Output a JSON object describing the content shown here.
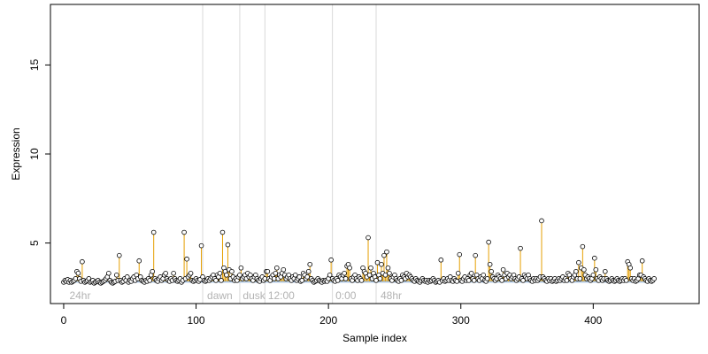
{
  "chart_data": {
    "type": "scatter",
    "xlabel": "Sample index",
    "ylabel": "Expression",
    "xlim": [
      -10,
      480
    ],
    "ylim": [
      1.6,
      18.4
    ],
    "xticks": [
      0,
      100,
      200,
      300,
      400
    ],
    "yticks": [
      5,
      10,
      15
    ],
    "baseline": 2.85,
    "colors": {
      "segment": "#e69f00",
      "baseline": "#a9c4e4",
      "point_edge": "#000000",
      "point_fill": "#ffffff",
      "divider": "#d9d9d9",
      "group_label": "#b3b3b3"
    },
    "dividers": [
      105,
      133,
      152,
      203,
      236
    ],
    "group_labels": [
      {
        "x": 3,
        "text": "24hr"
      },
      {
        "x": 107,
        "text": "dawn"
      },
      {
        "x": 134,
        "text": "dusk"
      },
      {
        "x": 153,
        "text": "12:00"
      },
      {
        "x": 204,
        "text": "0:00"
      },
      {
        "x": 238,
        "text": "48hr"
      }
    ],
    "series": [
      {
        "values": [
          2.8,
          2.9,
          2.85,
          2.95,
          2.8,
          2.9,
          2.8,
          2.85,
          2.9,
          3.0,
          3.4,
          3.3,
          3.0,
          2.85,
          3.95,
          2.9,
          2.8,
          2.85,
          2.9,
          3.0,
          2.8,
          2.85,
          2.9,
          2.75,
          2.8,
          2.85,
          2.9,
          2.8,
          2.75,
          2.8,
          2.85,
          2.9,
          3.0,
          3.1,
          3.3,
          2.9,
          2.8,
          2.75,
          2.8,
          2.85,
          3.2,
          2.9,
          4.3,
          2.9,
          2.8,
          2.85,
          3.0,
          2.9,
          3.1,
          2.8,
          2.9,
          2.85,
          3.0,
          3.1,
          2.9,
          3.2,
          3.0,
          4.0,
          3.1,
          2.9,
          2.85,
          2.8,
          2.9,
          2.85,
          3.0,
          2.9,
          3.2,
          3.4,
          5.6,
          3.0,
          2.9,
          2.85,
          3.0,
          3.1,
          2.9,
          3.0,
          3.2,
          3.3,
          3.0,
          2.9,
          2.85,
          3.0,
          2.9,
          3.3,
          3.0,
          2.9,
          2.85,
          2.9,
          3.0,
          2.8,
          2.9,
          5.6,
          3.0,
          4.1,
          3.1,
          3.2,
          3.3,
          2.9,
          2.85,
          2.9,
          3.0,
          2.9,
          2.85,
          2.95,
          4.85,
          3.1,
          2.9,
          2.85,
          2.9,
          3.0,
          2.9,
          3.0,
          3.1,
          3.2,
          3.0,
          2.9,
          3.2,
          3.1,
          3.3,
          2.9,
          5.6,
          3.6,
          3.4,
          3.2,
          4.9,
          3.5,
          3.0,
          3.4,
          3.1,
          2.9,
          3.0,
          2.9,
          3.1,
          3.2,
          3.6,
          3.0,
          3.1,
          3.2,
          3.0,
          3.3,
          3.1,
          3.2,
          3.0,
          2.9,
          3.1,
          3.2,
          3.0,
          2.9,
          2.85,
          3.0,
          3.1,
          2.9,
          3.0,
          3.4,
          3.4,
          3.0,
          2.9,
          3.1,
          3.2,
          3.0,
          3.3,
          3.6,
          3.0,
          3.2,
          3.1,
          3.3,
          3.5,
          3.2,
          3.0,
          3.1,
          3.2,
          3.0,
          2.9,
          3.1,
          3.0,
          3.2,
          2.9,
          3.0,
          3.1,
          2.85,
          2.9,
          3.3,
          3.2,
          3.0,
          3.1,
          3.4,
          3.8,
          3.0,
          2.9,
          2.8,
          2.85,
          2.9,
          3.0,
          2.9,
          2.85,
          2.8,
          2.9,
          2.85,
          2.9,
          2.85,
          3.0,
          3.2,
          4.05,
          3.0,
          2.9,
          2.85,
          3.0,
          2.9,
          3.2,
          3.1,
          3.0,
          3.2,
          3.3,
          3.0,
          3.7,
          3.8,
          3.6,
          3.0,
          2.9,
          3.1,
          3.2,
          3.0,
          2.9,
          3.1,
          3.0,
          2.9,
          3.6,
          3.4,
          3.3,
          3.1,
          5.3,
          3.2,
          3.6,
          3.0,
          3.3,
          3.1,
          2.9,
          3.9,
          3.2,
          3.0,
          3.8,
          3.3,
          4.3,
          3.2,
          4.5,
          3.6,
          3.3,
          3.0,
          2.9,
          3.1,
          3.2,
          3.0,
          2.9,
          2.85,
          3.0,
          2.9,
          3.2,
          3.1,
          3.0,
          3.3,
          3.1,
          3.2,
          3.1,
          3.0,
          2.9,
          2.85,
          3.0,
          2.9,
          2.85,
          2.8,
          2.9,
          3.0,
          2.9,
          2.85,
          2.9,
          2.8,
          2.9,
          2.85,
          2.9,
          3.0,
          2.9,
          2.8,
          2.85,
          2.9,
          2.8,
          4.05,
          2.9,
          3.0,
          2.85,
          2.9,
          3.0,
          2.9,
          3.1,
          2.9,
          2.85,
          3.0,
          2.9,
          2.85,
          3.3,
          4.35,
          2.9,
          2.85,
          3.0,
          3.1,
          2.9,
          3.0,
          2.9,
          3.2,
          3.3,
          3.0,
          2.9,
          4.3,
          3.2,
          3.0,
          2.9,
          3.1,
          3.0,
          3.2,
          2.9,
          2.85,
          3.0,
          5.05,
          3.8,
          3.4,
          3.1,
          3.0,
          2.9,
          3.0,
          3.2,
          3.1,
          3.0,
          2.9,
          3.5,
          3.2,
          3.0,
          3.3,
          3.1,
          3.2,
          3.0,
          3.1,
          3.2,
          3.0,
          2.9,
          3.0,
          3.1,
          4.7,
          3.0,
          2.9,
          3.2,
          3.1,
          3.0,
          3.2,
          3.0,
          2.9,
          2.85,
          3.0,
          2.9,
          3.0,
          2.9,
          3.0,
          3.1,
          6.25,
          3.1,
          3.0,
          2.9,
          2.85,
          3.0,
          2.9,
          3.0,
          2.85,
          2.9,
          3.0,
          2.85,
          2.9,
          3.0,
          2.9,
          3.0,
          3.1,
          2.9,
          3.0,
          2.9,
          3.3,
          3.2,
          3.0,
          2.9,
          3.1,
          3.2,
          3.4,
          3.0,
          3.9,
          3.0,
          3.6,
          4.8,
          3.5,
          3.2,
          3.0,
          3.1,
          3.0,
          2.9,
          3.0,
          3.2,
          4.15,
          3.5,
          3.0,
          2.9,
          3.1,
          3.0,
          2.9,
          3.0,
          3.4,
          3.0,
          2.9,
          2.85,
          2.9,
          3.0,
          2.9,
          2.85,
          2.9,
          3.0,
          2.9,
          2.85,
          2.9,
          3.0,
          2.9,
          3.0,
          2.9,
          3.95,
          3.8,
          3.6,
          3.0,
          2.9,
          3.0,
          2.85,
          2.9,
          3.0,
          3.2,
          3.2,
          4.0,
          3.1,
          3.0,
          2.9,
          2.85,
          3.0,
          2.9,
          2.85,
          2.9,
          3.0
        ]
      }
    ]
  }
}
